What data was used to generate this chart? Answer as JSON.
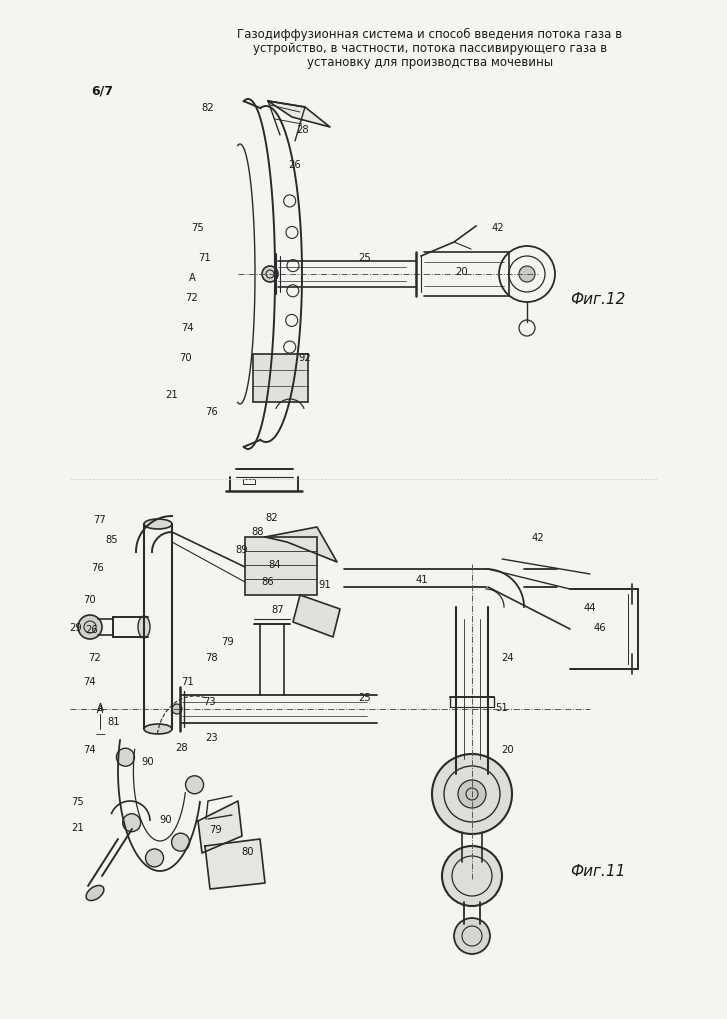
{
  "title_line1": "Газодиффузионная система и способ введения потока газа в",
  "title_line2": "устройство, в частности, потока пассивирующего газа в",
  "title_line3": "установку для производства мочевины",
  "page_label": "6/7",
  "fig12_label": "Фиг.12",
  "fig11_label": "Фиг.11",
  "bg_color": "#f5f4f0",
  "text_color": "#1a1a1a",
  "drawing_color": "#2a2a2a",
  "light_gray": "#aaaaaa"
}
